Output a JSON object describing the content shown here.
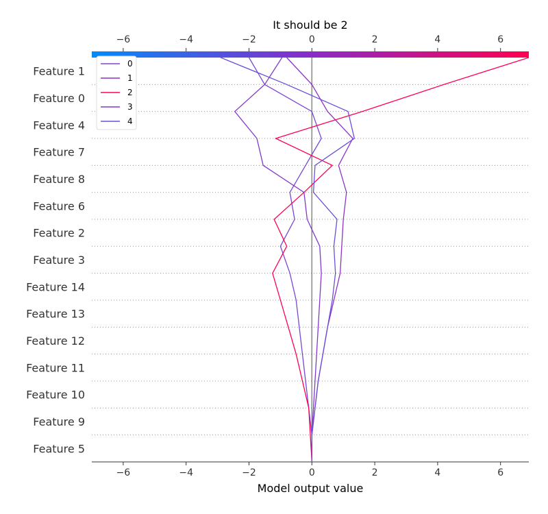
{
  "chart_data": {
    "type": "line",
    "title": "It should be 2",
    "xlabel": "Model output value",
    "ylabel": "",
    "xlim": [
      -7,
      6.9
    ],
    "xticks": [
      -6,
      -4,
      -2,
      0,
      2,
      4,
      6
    ],
    "xtick_labels": [
      "−6",
      "−4",
      "−2",
      "0",
      "2",
      "4",
      "6"
    ],
    "colorbar": {
      "from": "#008bfb",
      "mid": "#8a2bc9",
      "to": "#ff0051"
    },
    "legend": {
      "position": "top-left"
    },
    "grid": "dotted horizontal",
    "features": [
      "Feature 1",
      "Feature 0",
      "Feature 4",
      "Feature 7",
      "Feature 8",
      "Feature 6",
      "Feature 2",
      "Feature 3",
      "Feature 14",
      "Feature 13",
      "Feature 12",
      "Feature 11",
      "Feature 10",
      "Feature 9",
      "Feature 5"
    ],
    "series": [
      {
        "name": "0",
        "color": "#7a45d6",
        "values": [
          -2.0,
          -1.5,
          0.0,
          0.3,
          -0.2,
          -0.7,
          -0.55,
          -1.0,
          -0.7,
          -0.5,
          -0.4,
          -0.3,
          -0.2,
          -0.1,
          0.0,
          0.0
        ]
      },
      {
        "name": "1",
        "color": "#8c31c4",
        "values": [
          -0.8,
          0.0,
          0.5,
          1.3,
          0.85,
          1.1,
          1.0,
          0.95,
          0.9,
          0.7,
          0.5,
          0.35,
          0.2,
          0.1,
          0.0,
          0.0
        ]
      },
      {
        "name": "2",
        "color": "#ff0051",
        "values": [
          6.9,
          4.2,
          1.6,
          -1.15,
          0.65,
          -0.25,
          -1.2,
          -0.8,
          -1.25,
          -1.0,
          -0.75,
          -0.5,
          -0.3,
          -0.1,
          -0.05,
          0.0
        ]
      },
      {
        "name": "3",
        "color": "#8337ca",
        "values": [
          -0.95,
          -1.5,
          -2.45,
          -1.75,
          -1.55,
          -0.25,
          -0.15,
          0.25,
          0.3,
          0.25,
          0.2,
          0.15,
          0.1,
          0.05,
          0.0,
          0.0
        ]
      },
      {
        "name": "4",
        "color": "#6a4ed9",
        "values": [
          -2.9,
          -0.8,
          1.15,
          1.35,
          0.1,
          0.05,
          0.8,
          0.7,
          0.75,
          0.65,
          0.5,
          0.35,
          0.2,
          0.1,
          0.0,
          0.0
        ]
      }
    ]
  }
}
